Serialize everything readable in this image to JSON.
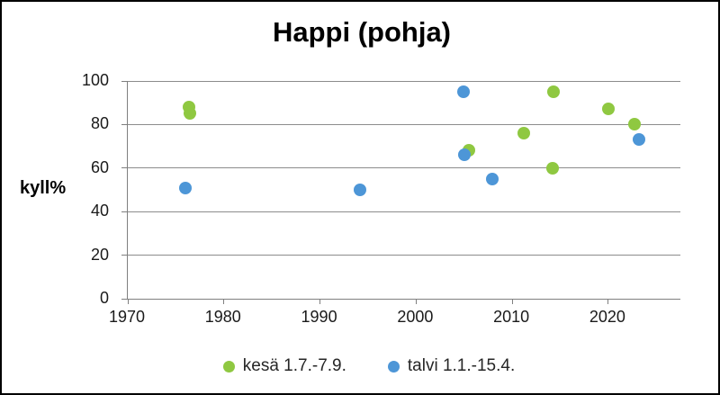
{
  "title": "Happi (pohja)",
  "chart_data": {
    "type": "scatter",
    "title": "Happi (pohja)",
    "xlabel": "",
    "ylabel": "kyll%",
    "xlim": [
      1970,
      2027.5
    ],
    "ylim": [
      0,
      100
    ],
    "x_ticks": [
      1970,
      1980,
      1990,
      2000,
      2010,
      2020
    ],
    "y_ticks": [
      0,
      20,
      40,
      60,
      80,
      100
    ],
    "grid": "horizontal-only",
    "legend_position": "bottom-center",
    "series": [
      {
        "name": "kesä 1.7.-7.9.",
        "color": "#8fc841",
        "points": [
          {
            "year": 1976.4,
            "value": 88
          },
          {
            "year": 1976.5,
            "value": 85
          },
          {
            "year": 2005.5,
            "value": 68
          },
          {
            "year": 2011.2,
            "value": 76
          },
          {
            "year": 2014.3,
            "value": 95
          },
          {
            "year": 2014.2,
            "value": 60
          },
          {
            "year": 2020.0,
            "value": 87
          },
          {
            "year": 2022.7,
            "value": 80
          }
        ]
      },
      {
        "name": "talvi 1.1.-15.4.",
        "color": "#4d96d7",
        "points": [
          {
            "year": 1976.0,
            "value": 51
          },
          {
            "year": 1994.2,
            "value": 50
          },
          {
            "year": 2004.9,
            "value": 95
          },
          {
            "year": 2005.0,
            "value": 66
          },
          {
            "year": 2007.9,
            "value": 55
          },
          {
            "year": 2023.2,
            "value": 73
          }
        ]
      }
    ],
    "axis_colors": {
      "gridline": "#8c8c8c",
      "axis_line": "#7f7f7f",
      "tick_label": "#1a1a1a"
    }
  }
}
